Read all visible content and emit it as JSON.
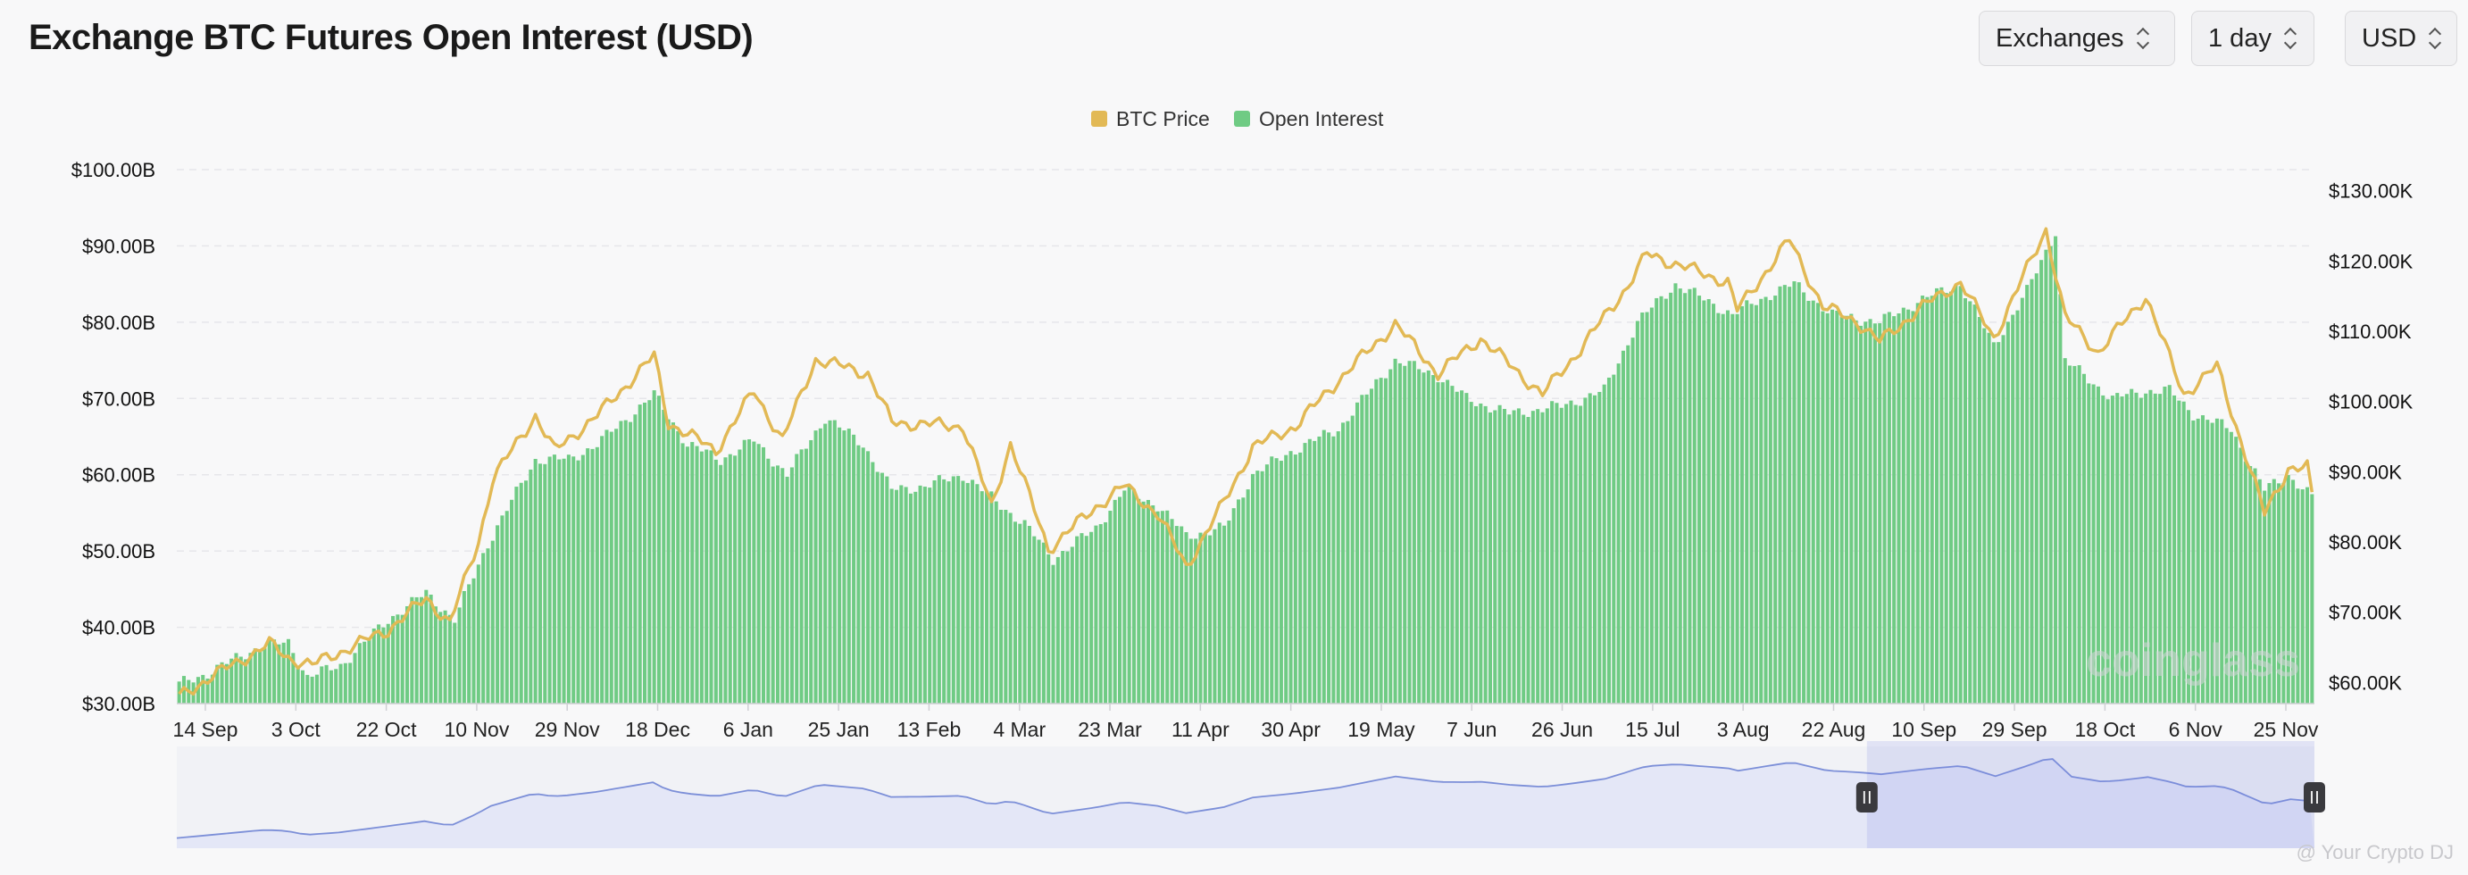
{
  "header": {
    "title": "Exchange BTC Futures Open Interest (USD)",
    "exchanges_label": "Exchanges",
    "interval_label": "1 day",
    "currency_label": "USD"
  },
  "watermark": "coinglass",
  "credit": "@ Your Crypto DJ",
  "chart_data": {
    "type": "bar+line",
    "title": "Exchange BTC Futures Open Interest (USD)",
    "legend": [
      {
        "name": "BTC Price",
        "color": "#e2b955"
      },
      {
        "name": "Open Interest",
        "color": "#6fcb84"
      }
    ],
    "legend_placement": "top-center",
    "grid": true,
    "x_ticks": [
      "14 Sep",
      "3 Oct",
      "22 Oct",
      "10 Nov",
      "29 Nov",
      "18 Dec",
      "6 Jan",
      "25 Jan",
      "13 Feb",
      "4 Mar",
      "23 Mar",
      "11 Apr",
      "30 Apr",
      "19 May",
      "7 Jun",
      "26 Jun",
      "15 Jul",
      "3 Aug",
      "22 Aug",
      "10 Sep",
      "29 Sep",
      "18 Oct",
      "6 Nov",
      "25 Nov"
    ],
    "y_left": {
      "ticks": [
        "$30.00B",
        "$40.00B",
        "$50.00B",
        "$60.00B",
        "$70.00B",
        "$80.00B",
        "$90.00B",
        "$100.00B"
      ],
      "range": [
        30,
        100
      ],
      "unit": "B USD"
    },
    "y_right": {
      "ticks": [
        "$60.00K",
        "$70.00K",
        "$80.00K",
        "$90.00K",
        "$100.00K",
        "$110.00K",
        "$120.00K",
        "$130.00K"
      ],
      "range": [
        57000,
        133000
      ],
      "unit": "USD"
    },
    "series": [
      {
        "name": "Open Interest",
        "axis": "left",
        "anchors": [
          [
            "2024-09-08",
            32.5
          ],
          [
            "2024-09-14",
            34.0
          ],
          [
            "2024-09-25",
            37.5
          ],
          [
            "2024-10-01",
            38.0
          ],
          [
            "2024-10-05",
            33.5
          ],
          [
            "2024-10-12",
            35.0
          ],
          [
            "2024-10-22",
            41.0
          ],
          [
            "2024-10-30",
            44.5
          ],
          [
            "2024-11-05",
            41.0
          ],
          [
            "2024-11-12",
            51.0
          ],
          [
            "2024-11-22",
            62.0
          ],
          [
            "2024-11-29",
            62.0
          ],
          [
            "2024-12-05",
            64.0
          ],
          [
            "2024-12-17",
            70.5
          ],
          [
            "2024-12-24",
            64.0
          ],
          [
            "2024-12-31",
            62.0
          ],
          [
            "2025-01-07",
            64.5
          ],
          [
            "2025-01-14",
            60.0
          ],
          [
            "2025-01-22",
            67.5
          ],
          [
            "2025-01-30",
            64.0
          ],
          [
            "2025-02-05",
            58.0
          ],
          [
            "2025-02-12",
            58.5
          ],
          [
            "2025-02-20",
            60.0
          ],
          [
            "2025-02-28",
            56.0
          ],
          [
            "2025-03-05",
            53.5
          ],
          [
            "2025-03-11",
            49.0
          ],
          [
            "2025-03-20",
            53.0
          ],
          [
            "2025-03-26",
            58.0
          ],
          [
            "2025-04-02",
            56.0
          ],
          [
            "2025-04-08",
            52.0
          ],
          [
            "2025-04-16",
            53.0
          ],
          [
            "2025-04-22",
            60.0
          ],
          [
            "2025-04-30",
            63.0
          ],
          [
            "2025-05-10",
            66.0
          ],
          [
            "2025-05-22",
            75.0
          ],
          [
            "2025-05-31",
            73.0
          ],
          [
            "2025-06-06",
            70.0
          ],
          [
            "2025-06-15",
            68.0
          ],
          [
            "2025-06-26",
            69.0
          ],
          [
            "2025-07-05",
            71.0
          ],
          [
            "2025-07-12",
            80.0
          ],
          [
            "2025-07-20",
            85.0
          ],
          [
            "2025-08-01",
            81.0
          ],
          [
            "2025-08-10",
            84.0
          ],
          [
            "2025-08-14",
            85.0
          ],
          [
            "2025-08-22",
            81.0
          ],
          [
            "2025-09-01",
            80.0
          ],
          [
            "2025-09-10",
            83.0
          ],
          [
            "2025-09-18",
            85.0
          ],
          [
            "2025-09-25",
            77.0
          ],
          [
            "2025-10-02",
            84.0
          ],
          [
            "2025-10-08",
            92.0
          ],
          [
            "2025-10-10",
            75.0
          ],
          [
            "2025-10-20",
            70.0
          ],
          [
            "2025-10-27",
            71.0
          ],
          [
            "2025-11-01",
            71.0
          ],
          [
            "2025-11-06",
            68.0
          ],
          [
            "2025-11-14",
            66.0
          ],
          [
            "2025-11-21",
            58.0
          ],
          [
            "2025-11-26",
            60.0
          ],
          [
            "2025-12-01",
            57.0
          ]
        ]
      },
      {
        "name": "BTC Price",
        "axis": "right",
        "anchors": [
          [
            "2024-09-08",
            58000
          ],
          [
            "2024-09-14",
            60500
          ],
          [
            "2024-09-27",
            65500
          ],
          [
            "2024-10-01",
            63500
          ],
          [
            "2024-10-06",
            62500
          ],
          [
            "2024-10-14",
            65000
          ],
          [
            "2024-10-22",
            67500
          ],
          [
            "2024-10-30",
            72000
          ],
          [
            "2024-11-04",
            68500
          ],
          [
            "2024-11-10",
            80000
          ],
          [
            "2024-11-13",
            89000
          ],
          [
            "2024-11-22",
            98000
          ],
          [
            "2024-11-26",
            93000
          ],
          [
            "2024-12-05",
            98000
          ],
          [
            "2024-12-17",
            106500
          ],
          [
            "2024-12-20",
            97000
          ],
          [
            "2024-12-30",
            93000
          ],
          [
            "2025-01-07",
            101500
          ],
          [
            "2025-01-13",
            94500
          ],
          [
            "2025-01-20",
            106000
          ],
          [
            "2025-01-31",
            104000
          ],
          [
            "2025-02-05",
            97000
          ],
          [
            "2025-02-20",
            96500
          ],
          [
            "2025-02-26",
            85000
          ],
          [
            "2025-03-02",
            94000
          ],
          [
            "2025-03-10",
            79000
          ],
          [
            "2025-03-20",
            85000
          ],
          [
            "2025-03-26",
            88000
          ],
          [
            "2025-04-02",
            84000
          ],
          [
            "2025-04-08",
            76500
          ],
          [
            "2025-04-15",
            84500
          ],
          [
            "2025-04-22",
            93500
          ],
          [
            "2025-05-01",
            96500
          ],
          [
            "2025-05-10",
            103000
          ],
          [
            "2025-05-22",
            111000
          ],
          [
            "2025-05-31",
            104000
          ],
          [
            "2025-06-09",
            109000
          ],
          [
            "2025-06-22",
            101000
          ],
          [
            "2025-06-30",
            107500
          ],
          [
            "2025-07-10",
            116500
          ],
          [
            "2025-07-14",
            121000
          ],
          [
            "2025-07-31",
            117000
          ],
          [
            "2025-08-02",
            113000
          ],
          [
            "2025-08-13",
            123000
          ],
          [
            "2025-08-20",
            113500
          ],
          [
            "2025-08-27",
            111500
          ],
          [
            "2025-09-01",
            108500
          ],
          [
            "2025-09-10",
            113500
          ],
          [
            "2025-09-18",
            117000
          ],
          [
            "2025-09-25",
            109000
          ],
          [
            "2025-10-06",
            124500
          ],
          [
            "2025-10-10",
            112000
          ],
          [
            "2025-10-17",
            107000
          ],
          [
            "2025-10-27",
            115000
          ],
          [
            "2025-11-04",
            101000
          ],
          [
            "2025-11-11",
            105000
          ],
          [
            "2025-11-21",
            84000
          ],
          [
            "2025-11-26",
            90500
          ],
          [
            "2025-11-30",
            90500
          ],
          [
            "2025-12-01",
            86500
          ]
        ]
      }
    ],
    "navigator": {
      "selected_range": [
        "2025-08-29",
        "2025-12-01"
      ]
    }
  }
}
